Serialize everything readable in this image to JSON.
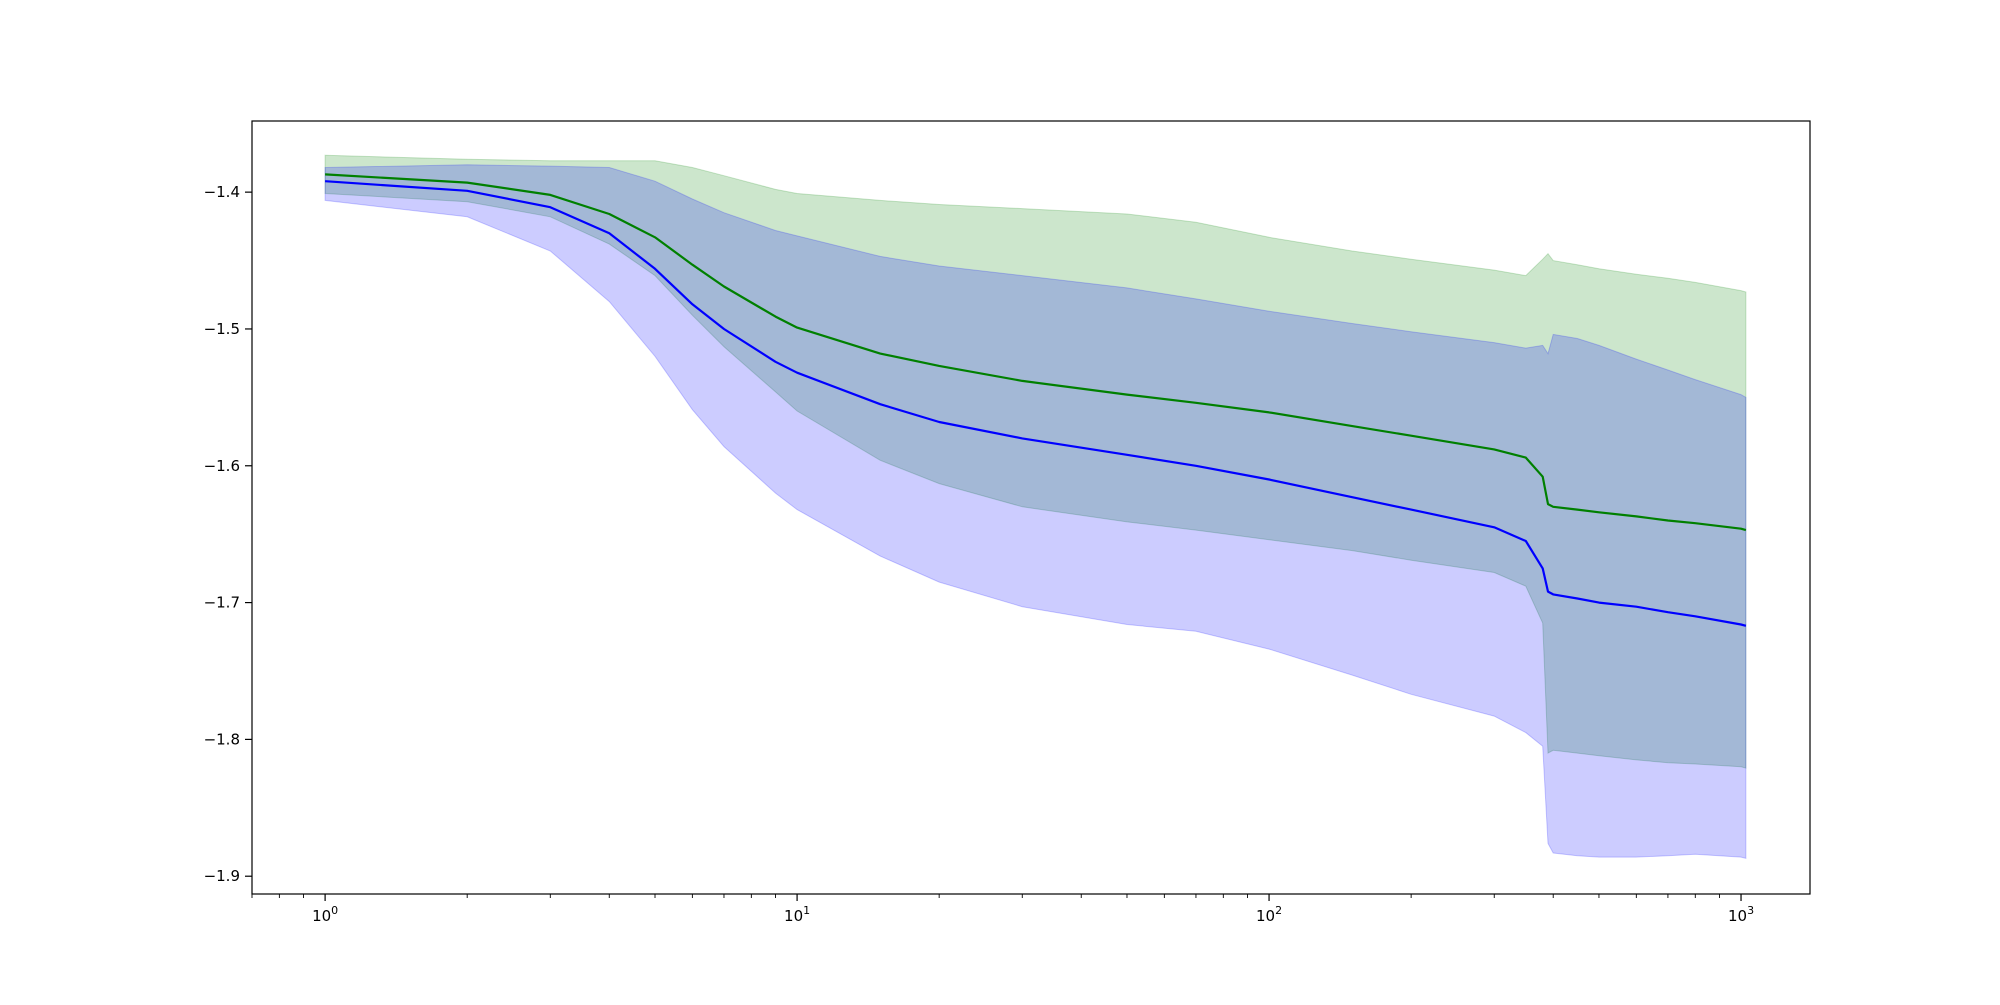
{
  "chart_data": {
    "type": "area",
    "xscale": "log",
    "xlim": [
      0.7,
      1400
    ],
    "ylim": [
      -1.913,
      -1.348
    ],
    "x_ticks": [
      {
        "value": 1,
        "base": "10",
        "exp": "0"
      },
      {
        "value": 10,
        "base": "10",
        "exp": "1"
      },
      {
        "value": 100,
        "base": "10",
        "exp": "2"
      },
      {
        "value": 1000,
        "base": "10",
        "exp": "3"
      }
    ],
    "y_ticks": [
      {
        "value": -1.4,
        "label": "−1.4"
      },
      {
        "value": -1.5,
        "label": "−1.5"
      },
      {
        "value": -1.6,
        "label": "−1.6"
      },
      {
        "value": -1.7,
        "label": "−1.7"
      },
      {
        "value": -1.8,
        "label": "−1.8"
      },
      {
        "value": -1.9,
        "label": "−1.9"
      }
    ],
    "grid": false,
    "legend": "none",
    "series": [
      {
        "color": "#008000",
        "band_color": "#008000",
        "x": [
          1,
          2,
          3,
          4,
          5,
          6,
          7,
          9,
          10,
          15,
          20,
          30,
          50,
          70,
          100,
          150,
          200,
          300,
          350,
          380,
          390,
          400,
          450,
          500,
          600,
          700,
          800,
          1000,
          1024
        ],
        "mean": [
          -1.387,
          -1.393,
          -1.402,
          -1.416,
          -1.433,
          -1.453,
          -1.469,
          -1.491,
          -1.499,
          -1.518,
          -1.527,
          -1.538,
          -1.548,
          -1.554,
          -1.561,
          -1.571,
          -1.578,
          -1.588,
          -1.594,
          -1.608,
          -1.628,
          -1.63,
          -1.632,
          -1.634,
          -1.637,
          -1.64,
          -1.642,
          -1.646,
          -1.647
        ],
        "upper": [
          -1.373,
          -1.376,
          -1.377,
          -1.377,
          -1.377,
          -1.382,
          -1.388,
          -1.398,
          -1.401,
          -1.406,
          -1.409,
          -1.412,
          -1.416,
          -1.422,
          -1.433,
          -1.443,
          -1.449,
          -1.457,
          -1.461,
          -1.449,
          -1.445,
          -1.45,
          -1.453,
          -1.456,
          -1.46,
          -1.463,
          -1.466,
          -1.472,
          -1.473
        ],
        "lower": [
          -1.401,
          -1.407,
          -1.418,
          -1.438,
          -1.461,
          -1.49,
          -1.513,
          -1.546,
          -1.56,
          -1.596,
          -1.613,
          -1.63,
          -1.641,
          -1.647,
          -1.654,
          -1.662,
          -1.669,
          -1.678,
          -1.688,
          -1.715,
          -1.81,
          -1.808,
          -1.81,
          -1.812,
          -1.815,
          -1.817,
          -1.818,
          -1.82,
          -1.821
        ]
      },
      {
        "color": "#0000ff",
        "band_color": "#0000ff",
        "x": [
          1,
          2,
          3,
          4,
          5,
          6,
          7,
          9,
          10,
          15,
          20,
          30,
          50,
          70,
          100,
          150,
          200,
          300,
          350,
          380,
          390,
          400,
          450,
          500,
          600,
          700,
          800,
          1000,
          1024
        ],
        "mean": [
          -1.392,
          -1.399,
          -1.411,
          -1.43,
          -1.456,
          -1.482,
          -1.5,
          -1.524,
          -1.532,
          -1.555,
          -1.568,
          -1.58,
          -1.592,
          -1.6,
          -1.61,
          -1.623,
          -1.632,
          -1.645,
          -1.655,
          -1.675,
          -1.692,
          -1.694,
          -1.697,
          -1.7,
          -1.703,
          -1.707,
          -1.71,
          -1.716,
          -1.717
        ],
        "upper": [
          -1.382,
          -1.38,
          -1.381,
          -1.382,
          -1.392,
          -1.405,
          -1.415,
          -1.428,
          -1.432,
          -1.447,
          -1.454,
          -1.461,
          -1.47,
          -1.478,
          -1.487,
          -1.496,
          -1.502,
          -1.51,
          -1.514,
          -1.512,
          -1.518,
          -1.504,
          -1.507,
          -1.512,
          -1.522,
          -1.53,
          -1.537,
          -1.548,
          -1.55
        ],
        "lower": [
          -1.406,
          -1.418,
          -1.443,
          -1.48,
          -1.52,
          -1.559,
          -1.586,
          -1.62,
          -1.632,
          -1.666,
          -1.685,
          -1.703,
          -1.716,
          -1.721,
          -1.734,
          -1.753,
          -1.767,
          -1.783,
          -1.795,
          -1.805,
          -1.876,
          -1.883,
          -1.885,
          -1.886,
          -1.886,
          -1.885,
          -1.884,
          -1.886,
          -1.887
        ]
      }
    ]
  }
}
